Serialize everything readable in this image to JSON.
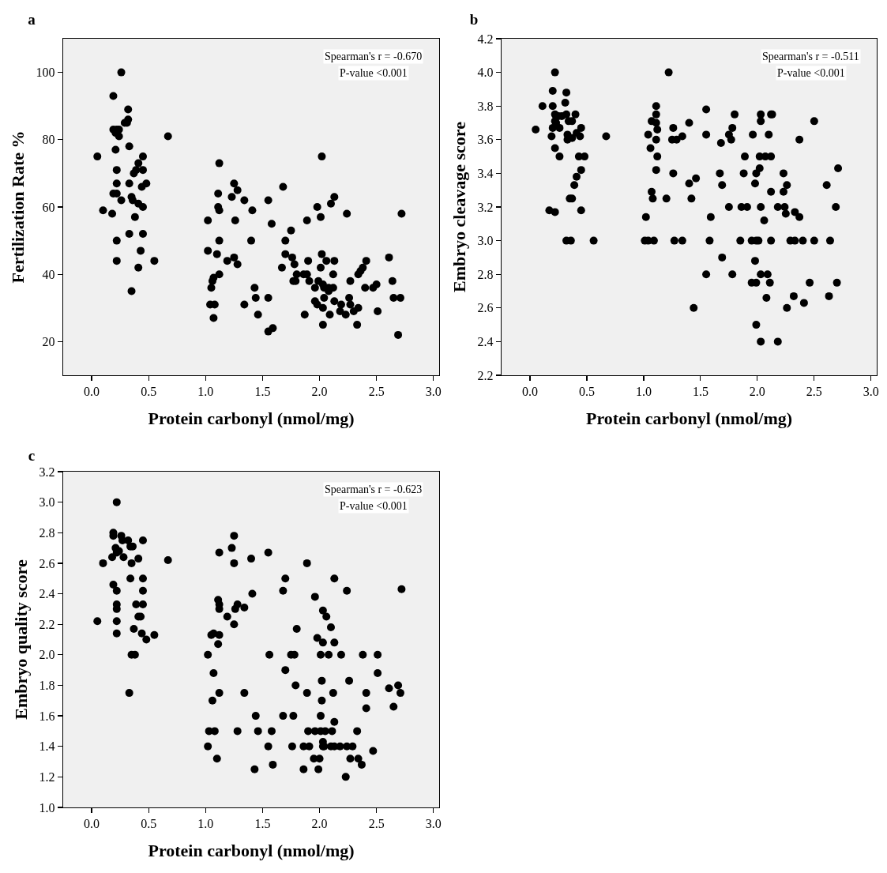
{
  "chart_data": [
    {
      "type": "scatter",
      "title": "a",
      "xlabel": "Protein carbonyl (nmol/mg)",
      "ylabel": "Fertilization Rate %",
      "marker": "circle",
      "grid": false,
      "annotations": [
        "Spearman's r = -0.670",
        "P-value <0.001"
      ],
      "xlim": [
        -0.25,
        3.05
      ],
      "xticks": [
        {
          "value": 0,
          "label": "0.0"
        },
        0.5,
        {
          "value": 1,
          "label": "1.0"
        },
        1.5,
        {
          "value": 2,
          "label": "2.0"
        },
        2.5,
        {
          "value": 3,
          "label": "3.0"
        }
      ],
      "ylim": [
        10,
        110
      ],
      "yticks": [
        20,
        40,
        60,
        80,
        100
      ],
      "series": [
        {
          "color": "#000000",
          "x": [
            0.26,
            0.19,
            0.32,
            0.32,
            0.29,
            0.31,
            0.19,
            0.22,
            0.24,
            0.21,
            0.24,
            0.67,
            0.33,
            0.21,
            0.05,
            0.45,
            0.41,
            0.39,
            0.45,
            0.22,
            0.37,
            0.22,
            0.33,
            0.48,
            0.44,
            0.19,
            0.22,
            0.26,
            0.35,
            0.36,
            0.41,
            0.45,
            0.1,
            0.18,
            0.38,
            0.33,
            0.45,
            0.22,
            0.43,
            0.22,
            0.55,
            0.41,
            0.35,
            1.12,
            1.25,
            1.28,
            1.11,
            1.23,
            1.34,
            1.55,
            1.68,
            1.11,
            1.12,
            1.41,
            1.02,
            1.26,
            1.58,
            1.75,
            2.02,
            2.13,
            2.1,
            1.98,
            1.89,
            2.01,
            2.24,
            2.72,
            1.12,
            1.4,
            1.7,
            1.02,
            1.1,
            1.25,
            1.19,
            1.28,
            1.7,
            1.76,
            1.78,
            1.67,
            1.9,
            2.02,
            2.06,
            2.13,
            2.01,
            2.61,
            2.41,
            2.38,
            2.36,
            2.34,
            1.8,
            1.86,
            1.89,
            2.12,
            1.77,
            1.79,
            1.91,
            1.99,
            2.27,
            2.64,
            1.12,
            1.07,
            1.06,
            1.05,
            2.03,
            2.04,
            2.08,
            2.12,
            1.96,
            2.08,
            2.4,
            2.47,
            2.5,
            1.43,
            1.44,
            1.55,
            2.04,
            2.26,
            2.65,
            2.71,
            1.04,
            1.08,
            1.34,
            1.96,
            1.98,
            2.03,
            2.13,
            2.19,
            2.27,
            2.34,
            2.18,
            2.23,
            2.3,
            2.51,
            2.09,
            1.87,
            1.46,
            1.07,
            2.03,
            2.33,
            1.55,
            1.59,
            2.69
          ],
          "values": [
            100,
            93,
            89,
            86,
            85,
            85,
            83,
            83,
            83,
            82,
            81,
            81,
            78,
            77,
            75,
            75,
            73,
            71,
            71,
            71,
            70,
            67,
            67,
            67,
            66,
            64,
            64,
            62,
            63,
            62,
            61,
            60,
            59,
            58,
            57,
            52,
            52,
            50,
            47,
            44,
            44,
            42,
            35,
            73,
            67,
            65,
            64,
            63,
            62,
            62,
            66,
            60,
            59,
            59,
            56,
            56,
            55,
            53,
            75,
            63,
            61,
            60,
            56,
            57,
            58,
            58,
            50,
            50,
            50,
            47,
            46,
            45,
            44,
            43,
            46,
            45,
            43,
            42,
            44,
            46,
            44,
            44,
            42,
            45,
            44,
            42,
            41,
            40,
            40,
            40,
            40,
            40,
            38,
            38,
            38,
            38,
            38,
            38,
            40,
            39,
            38,
            36,
            37,
            36,
            36,
            36,
            36,
            35,
            36,
            36,
            37,
            36,
            33,
            33,
            33,
            33,
            33,
            33,
            31,
            31,
            31,
            32,
            31,
            30,
            32,
            31,
            31,
            30,
            29,
            28,
            29,
            29,
            28,
            28,
            28,
            27,
            25,
            25,
            23,
            24,
            22
          ]
        }
      ]
    },
    {
      "type": "scatter",
      "title": "b",
      "xlabel": "Protein carbonyl (nmol/mg)",
      "ylabel": "Embryo cleavage score",
      "marker": "circle",
      "grid": false,
      "annotations": [
        "Spearman's r = -0.511",
        "P-value <0.001"
      ],
      "xlim": [
        -0.25,
        3.05
      ],
      "xticks": [
        {
          "value": 0,
          "label": "0.0"
        },
        0.5,
        {
          "value": 1,
          "label": "1.0"
        },
        1.5,
        {
          "value": 2,
          "label": "2.0"
        },
        2.5,
        {
          "value": 3,
          "label": "3.0"
        }
      ],
      "ylim": [
        2.2,
        4.2
      ],
      "yticks": [
        2.2,
        2.4,
        2.6,
        2.8,
        {
          "value": 3,
          "label": "3.0"
        },
        3.2,
        3.4,
        3.6,
        3.8,
        {
          "value": 4,
          "label": "4.0"
        },
        4.2
      ],
      "series": [
        {
          "color": "#000000",
          "x": [
            0.22,
            1.22,
            0.2,
            0.32,
            0.31,
            0.11,
            0.2,
            1.11,
            1.55,
            0.22,
            0.25,
            0.28,
            0.32,
            0.4,
            1.11,
            1.8,
            2.03,
            2.12,
            2.13,
            0.22,
            0.23,
            0.34,
            0.37,
            1.07,
            1.11,
            1.4,
            2.03,
            2.5,
            0.05,
            0.2,
            0.26,
            0.45,
            1.12,
            1.26,
            1.78,
            0.19,
            0.33,
            0.41,
            0.44,
            0.67,
            1.04,
            1.34,
            1.55,
            1.75,
            1.96,
            2.1,
            1.77,
            1.25,
            1.29,
            0.33,
            0.37,
            1.11,
            1.68,
            2.37,
            0.22,
            1.06,
            0.26,
            0.43,
            0.48,
            1.12,
            1.89,
            2.02,
            2.07,
            2.12,
            0.45,
            1.11,
            2.02,
            1.99,
            2.71,
            1.26,
            1.67,
            1.88,
            2.23,
            0.41,
            1.46,
            1.4,
            0.39,
            1.69,
            1.98,
            2.26,
            2.61,
            0.35,
            0.37,
            1.07,
            1.08,
            1.2,
            1.42,
            2.12,
            2.23,
            0.17,
            0.22,
            0.45,
            1.02,
            1.59,
            1.75,
            1.86,
            1.91,
            2.03,
            2.18,
            2.24,
            2.69,
            2.25,
            2.33,
            2.37,
            2.06,
            0.32,
            0.36,
            0.56,
            1.01,
            1.04,
            1.09,
            1.27,
            1.34,
            1.58,
            1.85,
            1.95,
            1.99,
            2.01,
            2.12,
            2.29,
            2.33,
            2.4,
            2.5,
            2.64,
            1.69,
            1.98,
            1.55,
            1.78,
            2.03,
            2.09,
            1.95,
            1.99,
            2.11,
            2.46,
            2.7,
            2.08,
            2.32,
            2.26,
            2.41,
            2.63,
            1.44,
            1.99,
            2.03,
            2.18
          ],
          "values": [
            4.0,
            4.0,
            3.89,
            3.88,
            3.82,
            3.8,
            3.8,
            3.8,
            3.78,
            3.75,
            3.74,
            3.74,
            3.75,
            3.75,
            3.75,
            3.75,
            3.75,
            3.75,
            3.75,
            3.71,
            3.7,
            3.71,
            3.71,
            3.71,
            3.7,
            3.7,
            3.71,
            3.71,
            3.66,
            3.67,
            3.67,
            3.67,
            3.66,
            3.67,
            3.67,
            3.62,
            3.63,
            3.64,
            3.62,
            3.62,
            3.63,
            3.62,
            3.63,
            3.63,
            3.63,
            3.63,
            3.6,
            3.6,
            3.6,
            3.6,
            3.61,
            3.6,
            3.58,
            3.6,
            3.55,
            3.55,
            3.5,
            3.5,
            3.5,
            3.5,
            3.5,
            3.5,
            3.5,
            3.5,
            3.42,
            3.42,
            3.43,
            3.4,
            3.43,
            3.4,
            3.4,
            3.4,
            3.4,
            3.38,
            3.37,
            3.34,
            3.33,
            3.33,
            3.34,
            3.33,
            3.33,
            3.25,
            3.25,
            3.29,
            3.25,
            3.25,
            3.25,
            3.29,
            3.29,
            3.18,
            3.17,
            3.18,
            3.14,
            3.14,
            3.2,
            3.2,
            3.2,
            3.2,
            3.2,
            3.2,
            3.2,
            3.16,
            3.17,
            3.14,
            3.12,
            3.0,
            3.0,
            3.0,
            3.0,
            3.0,
            3.0,
            3.0,
            3.0,
            3.0,
            3.0,
            3.0,
            3.0,
            3.0,
            3.0,
            3.0,
            3.0,
            3.0,
            3.0,
            3.0,
            2.9,
            2.88,
            2.8,
            2.8,
            2.8,
            2.8,
            2.75,
            2.75,
            2.75,
            2.75,
            2.75,
            2.66,
            2.67,
            2.6,
            2.63,
            2.67,
            2.6,
            2.5,
            2.4,
            2.4
          ]
        }
      ]
    },
    {
      "type": "scatter",
      "title": "c",
      "xlabel": "Protein carbonyl (nmol/mg)",
      "ylabel": "Embryo quality score",
      "marker": "circle",
      "grid": false,
      "annotations": [
        "Spearman's r = -0.623",
        "P-value <0.001"
      ],
      "xlim": [
        -0.25,
        3.05
      ],
      "xticks": [
        {
          "value": 0,
          "label": "0.0"
        },
        0.5,
        {
          "value": 1,
          "label": "1.0"
        },
        1.5,
        {
          "value": 2,
          "label": "2.0"
        },
        2.5,
        {
          "value": 3,
          "label": "3.0"
        }
      ],
      "ylim": [
        1.0,
        3.2
      ],
      "yticks": [
        {
          "value": 1,
          "label": "1.0"
        },
        1.2,
        1.4,
        1.6,
        1.8,
        {
          "value": 2,
          "label": "2.0"
        },
        2.2,
        2.4,
        2.6,
        2.8,
        {
          "value": 3,
          "label": "3.0"
        },
        3.2
      ],
      "series": [
        {
          "color": "#000000",
          "x": [
            0.22,
            0.19,
            0.19,
            0.26,
            0.27,
            0.32,
            0.45,
            1.25,
            0.34,
            0.36,
            0.21,
            1.23,
            0.24,
            0.22,
            0.18,
            0.28,
            0.41,
            1.12,
            1.55,
            1.4,
            0.1,
            0.35,
            0.67,
            1.25,
            1.89,
            0.34,
            0.45,
            1.7,
            2.13,
            0.19,
            0.22,
            0.45,
            1.68,
            2.24,
            2.72,
            1.41,
            1.96,
            0.22,
            0.22,
            0.39,
            0.45,
            1.11,
            1.12,
            1.28,
            1.26,
            1.34,
            1.12,
            2.03,
            2.06,
            0.05,
            0.22,
            0.41,
            0.43,
            1.19,
            1.25,
            0.22,
            0.37,
            0.44,
            0.55,
            0.48,
            1.05,
            1.07,
            1.12,
            1.8,
            2.1,
            1.11,
            1.98,
            2.03,
            2.13,
            0.35,
            0.38,
            1.02,
            1.56,
            1.75,
            1.78,
            2.01,
            2.08,
            2.19,
            2.38,
            2.51,
            1.07,
            1.7,
            2.51,
            0.33,
            1.12,
            1.34,
            1.89,
            2.12,
            2.41,
            2.71,
            2.69,
            2.61,
            1.79,
            2.02,
            2.26,
            1.06,
            2.02,
            2.41,
            2.65,
            1.44,
            1.68,
            1.77,
            2.01,
            2.13,
            1.03,
            1.08,
            1.28,
            1.46,
            1.58,
            1.9,
            1.96,
            2.01,
            2.05,
            2.11,
            2.33,
            1.02,
            1.55,
            1.76,
            1.86,
            1.91,
            2.03,
            2.04,
            2.1,
            2.13,
            2.18,
            2.24,
            2.29,
            2.03,
            2.47,
            1.1,
            1.95,
            2.0,
            2.27,
            2.34,
            2.37,
            1.59,
            1.43,
            1.86,
            1.99,
            2.23
          ],
          "values": [
            3.0,
            2.8,
            2.78,
            2.78,
            2.75,
            2.75,
            2.75,
            2.78,
            2.71,
            2.71,
            2.7,
            2.7,
            2.68,
            2.67,
            2.64,
            2.64,
            2.63,
            2.67,
            2.67,
            2.63,
            2.6,
            2.6,
            2.62,
            2.6,
            2.6,
            2.5,
            2.5,
            2.5,
            2.5,
            2.46,
            2.42,
            2.42,
            2.42,
            2.42,
            2.43,
            2.4,
            2.38,
            2.33,
            2.3,
            2.33,
            2.33,
            2.36,
            2.33,
            2.33,
            2.3,
            2.31,
            2.3,
            2.29,
            2.25,
            2.22,
            2.22,
            2.25,
            2.25,
            2.25,
            2.2,
            2.14,
            2.17,
            2.14,
            2.13,
            2.1,
            2.13,
            2.14,
            2.13,
            2.17,
            2.18,
            2.07,
            2.11,
            2.08,
            2.08,
            2.0,
            2.0,
            2.0,
            2.0,
            2.0,
            2.0,
            2.0,
            2.0,
            2.0,
            2.0,
            2.0,
            1.88,
            1.9,
            1.88,
            1.75,
            1.75,
            1.75,
            1.75,
            1.75,
            1.75,
            1.75,
            1.8,
            1.78,
            1.8,
            1.83,
            1.83,
            1.7,
            1.7,
            1.65,
            1.66,
            1.6,
            1.6,
            1.6,
            1.6,
            1.56,
            1.5,
            1.5,
            1.5,
            1.5,
            1.5,
            1.5,
            1.5,
            1.5,
            1.5,
            1.5,
            1.5,
            1.4,
            1.4,
            1.4,
            1.4,
            1.4,
            1.4,
            1.4,
            1.4,
            1.4,
            1.4,
            1.4,
            1.4,
            1.43,
            1.37,
            1.32,
            1.32,
            1.32,
            1.32,
            1.32,
            1.28,
            1.28,
            1.25,
            1.25,
            1.25,
            1.2
          ]
        }
      ]
    }
  ]
}
